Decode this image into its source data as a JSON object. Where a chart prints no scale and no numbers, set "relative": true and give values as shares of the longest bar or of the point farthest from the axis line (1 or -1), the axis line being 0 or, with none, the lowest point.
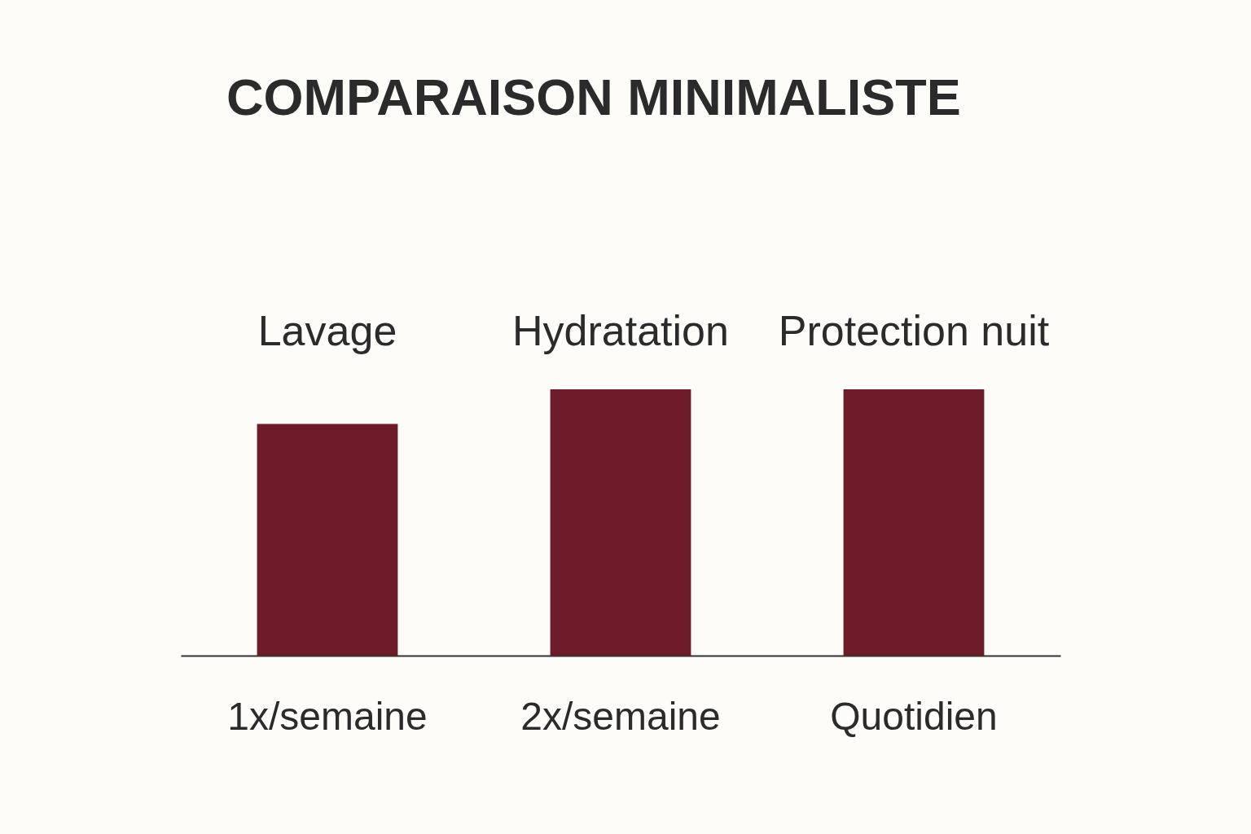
{
  "chart_data": {
    "type": "bar",
    "title": "COMPARAISON MINIMALISTE",
    "categories": [
      "1x/semaine",
      "2x/semaine",
      "Quotidien"
    ],
    "values": [
      0.87,
      1,
      1
    ],
    "color": "#6e1c29",
    "relative": true,
    "annotations": [
      "Lavage",
      "Hydratation",
      "Protection nuit"
    ]
  }
}
